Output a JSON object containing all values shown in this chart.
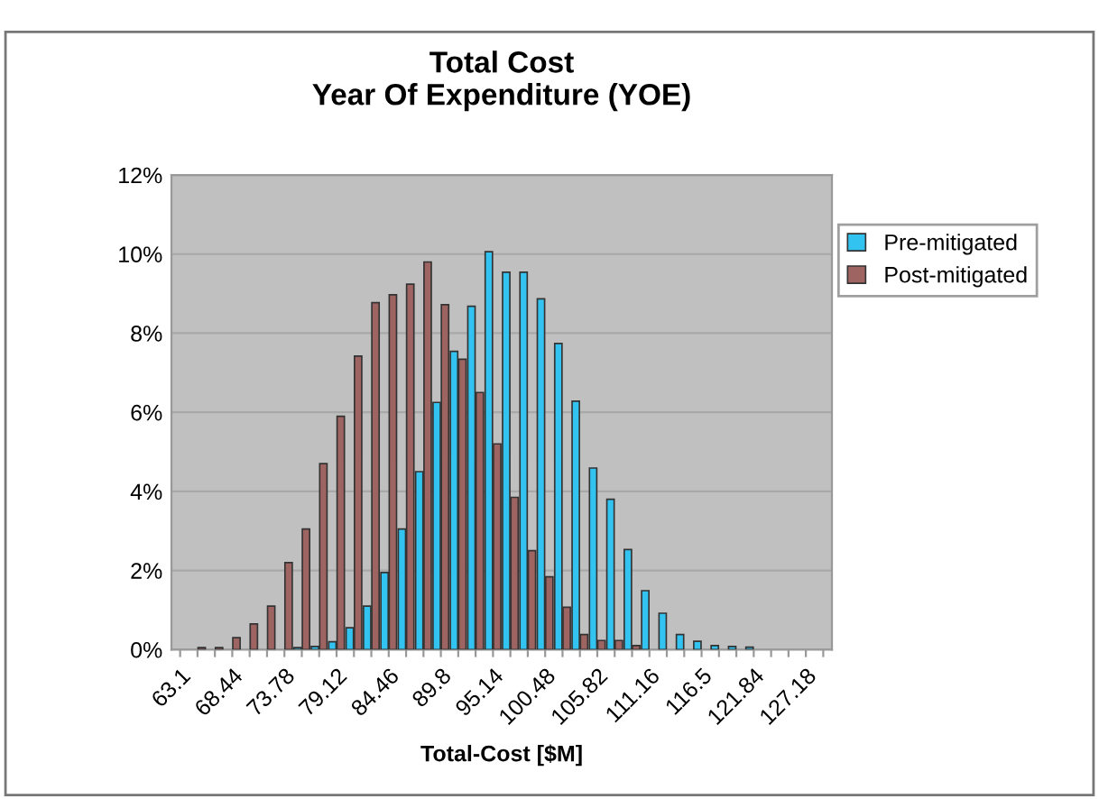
{
  "chart_data": {
    "type": "bar",
    "title": "Total Cost\nYear Of Expenditure (YOE)",
    "xlabel": "Total-Cost [$M]",
    "categories": [
      "63.1",
      null,
      null,
      "68.44",
      null,
      null,
      "73.78",
      null,
      null,
      "79.12",
      null,
      null,
      "84.46",
      null,
      null,
      "89.8",
      null,
      null,
      "95.14",
      null,
      null,
      "100.48",
      null,
      null,
      "105.82",
      null,
      null,
      "111.16",
      null,
      null,
      "116.5",
      null,
      null,
      "121.84",
      null,
      null,
      "127.18",
      null
    ],
    "series": [
      {
        "name": "Pre-mitigated",
        "color": "#33c3f0",
        "values": [
          null,
          null,
          null,
          null,
          null,
          null,
          null,
          0.05,
          0.08,
          0.2,
          0.55,
          1.1,
          1.95,
          3.05,
          4.5,
          6.25,
          7.54,
          8.68,
          10.06,
          9.54,
          9.54,
          8.87,
          7.74,
          6.28,
          4.59,
          3.8,
          2.53,
          1.49,
          0.92,
          0.38,
          0.21,
          0.1,
          0.08,
          0.06,
          null,
          null,
          null,
          null
        ]
      },
      {
        "name": "Post-mitigated",
        "color": "#9e6462",
        "values": [
          null,
          0.05,
          0.05,
          0.3,
          0.65,
          1.1,
          2.2,
          3.05,
          4.7,
          5.9,
          7.42,
          8.77,
          8.97,
          9.24,
          9.8,
          8.72,
          7.34,
          6.5,
          5.2,
          3.85,
          2.5,
          1.84,
          1.07,
          0.38,
          0.23,
          0.23,
          0.1,
          null,
          null,
          null,
          null,
          null,
          null,
          null,
          null,
          null,
          null,
          null
        ]
      }
    ],
    "ylim": [
      0,
      12
    ],
    "yticks": [
      {
        "value": 0,
        "label": "0%"
      },
      {
        "value": 2,
        "label": "2%"
      },
      {
        "value": 4,
        "label": "4%"
      },
      {
        "value": 6,
        "label": "6%"
      },
      {
        "value": 8,
        "label": "8%"
      },
      {
        "value": 10,
        "label": "10%"
      },
      {
        "value": 12,
        "label": "12%"
      }
    ],
    "grid": "y",
    "legend": "right"
  }
}
